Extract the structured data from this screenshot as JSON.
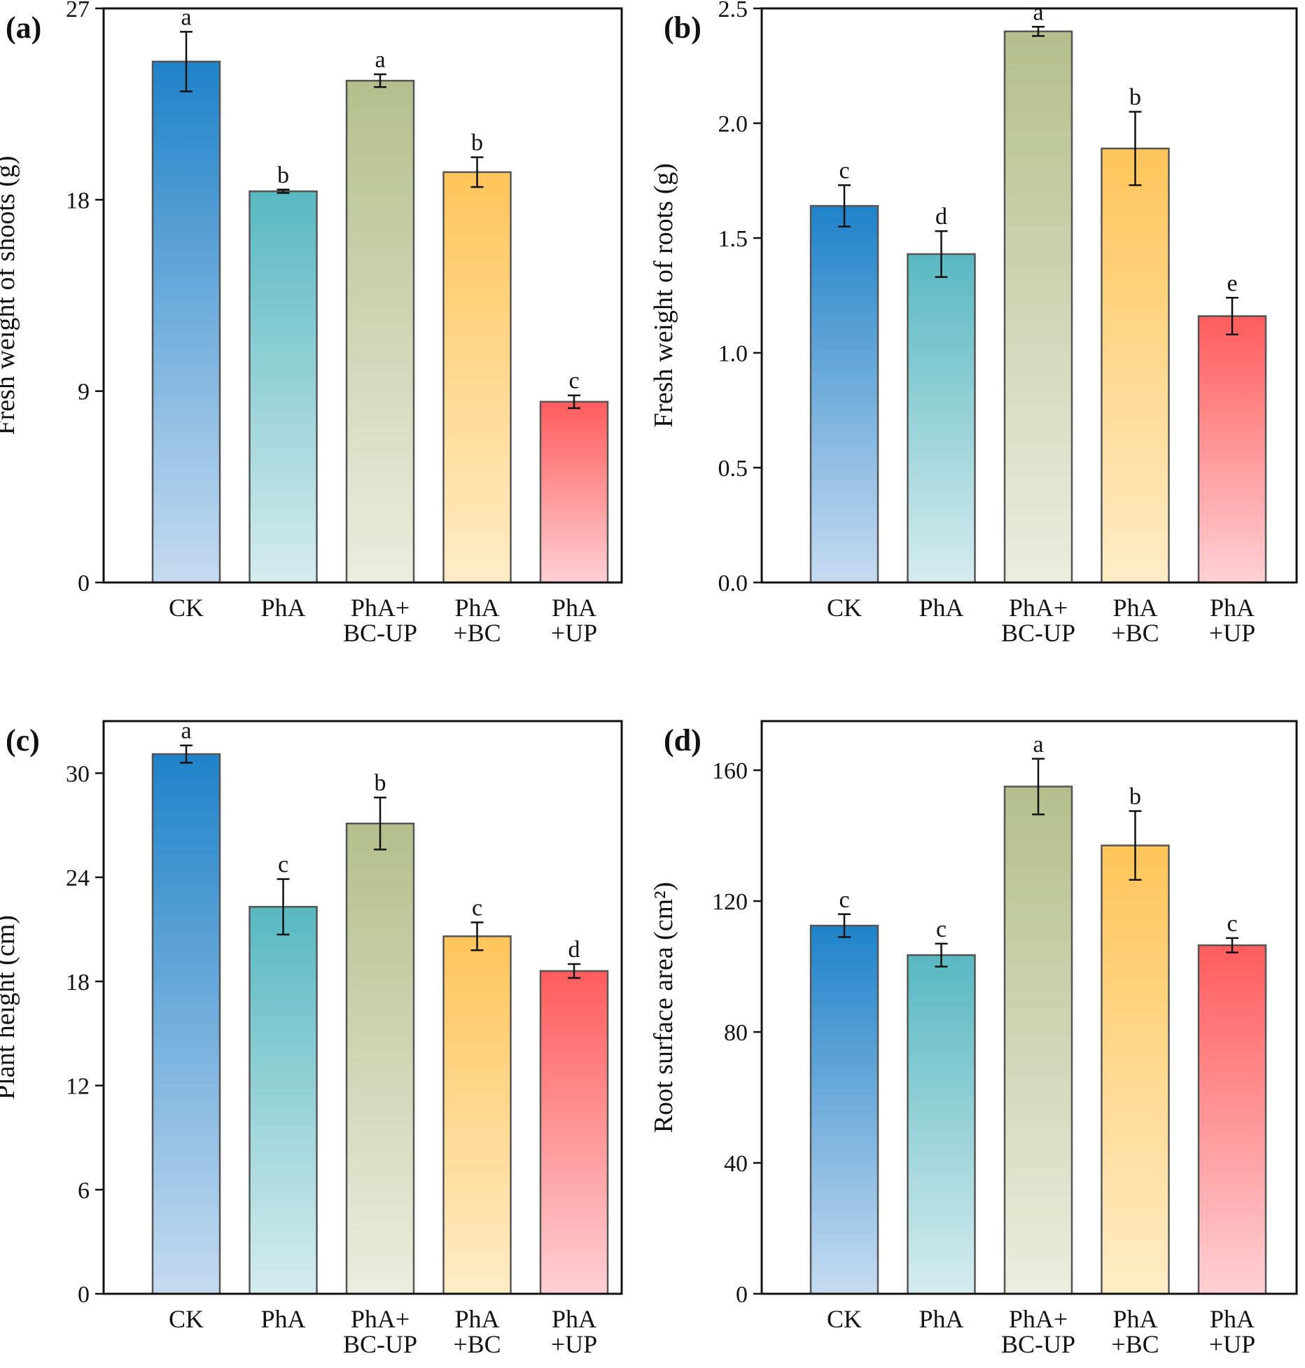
{
  "figure": {
    "colors": {
      "CK": {
        "top": "#1f82c8",
        "bottom": "#c6dbf0"
      },
      "PhA": {
        "top": "#58b8c2",
        "bottom": "#d5ecee"
      },
      "PhA+BC-UP": {
        "top": "#b5be8c",
        "bottom": "#ebedde"
      },
      "PhA+BC": {
        "top": "#ffc55a",
        "bottom": "#ffecc6"
      },
      "PhA+UP": {
        "top": "#ff5c5c",
        "bottom": "#ffd0d4"
      }
    },
    "bar_stroke": "#555555",
    "axis_color": "#111111"
  },
  "chart_data": [
    {
      "id": "a",
      "panel_label": "(a)",
      "type": "bar",
      "ylabel": "Fresh weight of shoots (g)",
      "ylim": [
        0,
        27
      ],
      "yticks": [
        0,
        9,
        18,
        27
      ],
      "ytick_labels": [
        "0",
        "9",
        "18",
        "27"
      ],
      "categories": [
        "CK",
        "PhA",
        "PhA+BC-UP",
        "PhA+BC",
        "PhA+UP"
      ],
      "category_label_lines": [
        [
          "CK"
        ],
        [
          "PhA"
        ],
        [
          "PhA+",
          "BC-UP"
        ],
        [
          "PhA",
          "+BC"
        ],
        [
          "PhA",
          "+UP"
        ]
      ],
      "values": [
        24.5,
        18.4,
        23.6,
        19.3,
        8.5
      ],
      "errors": [
        1.4,
        0.08,
        0.3,
        0.7,
        0.3
      ],
      "significance": [
        "a",
        "b",
        "a",
        "b",
        "c"
      ]
    },
    {
      "id": "b",
      "panel_label": "(b)",
      "type": "bar",
      "ylabel": "Fresh weight of roots (g)",
      "ylim": [
        0,
        2.5
      ],
      "yticks": [
        0,
        0.5,
        1.0,
        1.5,
        2.0,
        2.5
      ],
      "ytick_labels": [
        "0.0",
        "0.5",
        "1.0",
        "1.5",
        "2.0",
        "2.5"
      ],
      "categories": [
        "CK",
        "PhA",
        "PhA+BC-UP",
        "PhA+BC",
        "PhA+UP"
      ],
      "category_label_lines": [
        [
          "CK"
        ],
        [
          "PhA"
        ],
        [
          "PhA+",
          "BC-UP"
        ],
        [
          "PhA",
          "+BC"
        ],
        [
          "PhA",
          "+UP"
        ]
      ],
      "values": [
        1.64,
        1.43,
        2.4,
        1.89,
        1.16
      ],
      "errors": [
        0.09,
        0.1,
        0.02,
        0.16,
        0.08
      ],
      "significance": [
        "c",
        "d",
        "a",
        "b",
        "e"
      ]
    },
    {
      "id": "c",
      "panel_label": "(c)",
      "type": "bar",
      "ylabel": "Plant height (cm)",
      "ylim": [
        0,
        33
      ],
      "yticks": [
        0,
        6,
        12,
        18,
        24,
        30
      ],
      "ytick_labels": [
        "0",
        "6",
        "12",
        "18",
        "24",
        "30"
      ],
      "categories": [
        "CK",
        "PhA",
        "PhA+BC-UP",
        "PhA+BC",
        "PhA+UP"
      ],
      "category_label_lines": [
        [
          "CK"
        ],
        [
          "PhA"
        ],
        [
          "PhA+",
          "BC-UP"
        ],
        [
          "PhA",
          "+BC"
        ],
        [
          "PhA",
          "+UP"
        ]
      ],
      "values": [
        31.1,
        22.3,
        27.1,
        20.6,
        18.6
      ],
      "errors": [
        0.5,
        1.6,
        1.5,
        0.8,
        0.4
      ],
      "significance": [
        "a",
        "c",
        "b",
        "c",
        "d"
      ]
    },
    {
      "id": "d",
      "panel_label": "(d)",
      "type": "bar",
      "ylabel": "Root surface area (cm²)",
      "ylim": [
        0,
        175
      ],
      "yticks": [
        0,
        40,
        80,
        120,
        160
      ],
      "ytick_labels": [
        "0",
        "40",
        "80",
        "120",
        "160"
      ],
      "categories": [
        "CK",
        "PhA",
        "PhA+BC-UP",
        "PhA+BC",
        "PhA+UP"
      ],
      "category_label_lines": [
        [
          "CK"
        ],
        [
          "PhA"
        ],
        [
          "PhA+",
          "BC-UP"
        ],
        [
          "PhA",
          "+BC"
        ],
        [
          "PhA",
          "+UP"
        ]
      ],
      "values": [
        112.5,
        103.5,
        155.0,
        137.0,
        106.5
      ],
      "errors": [
        3.5,
        3.5,
        8.5,
        10.5,
        2.2
      ],
      "significance": [
        "c",
        "c",
        "a",
        "b",
        "c"
      ]
    }
  ]
}
